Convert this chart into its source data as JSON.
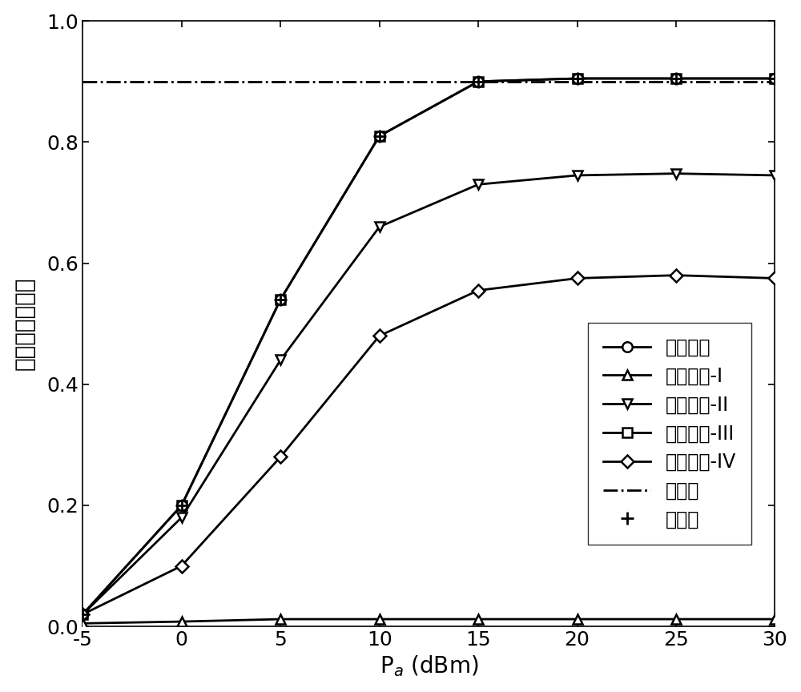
{
  "x": [
    -5,
    0,
    5,
    10,
    15,
    20,
    25,
    30
  ],
  "series_proposed": [
    0.02,
    0.2,
    0.54,
    0.81,
    0.9,
    0.905,
    0.905,
    0.905
  ],
  "series_baseline1": [
    0.005,
    0.008,
    0.012,
    0.012,
    0.012,
    0.012,
    0.012,
    0.012
  ],
  "series_baseline2": [
    0.02,
    0.18,
    0.44,
    0.66,
    0.73,
    0.745,
    0.748,
    0.745
  ],
  "series_baseline3": [
    0.02,
    0.2,
    0.54,
    0.81,
    0.9,
    0.905,
    0.905,
    0.905
  ],
  "series_baseline4": [
    0.02,
    0.1,
    0.28,
    0.48,
    0.555,
    0.575,
    0.58,
    0.575
  ],
  "asymptote": 0.9,
  "sim_x": [
    -5,
    0,
    5,
    10,
    15,
    20,
    25,
    30
  ],
  "sim_y": [
    0.02,
    0.2,
    0.54,
    0.81,
    0.9,
    0.905,
    0.905,
    0.905
  ],
  "xlabel": "P$_{a}$ (dBm)",
  "ylabel": "有效保密吞吐量",
  "xlim": [
    -5,
    30
  ],
  "ylim": [
    0,
    1
  ],
  "xticks": [
    -5,
    0,
    5,
    10,
    15,
    20,
    25,
    30
  ],
  "yticks": [
    0,
    0.2,
    0.4,
    0.6,
    0.8,
    1.0
  ],
  "legend_proposed": "所提方案",
  "legend_baseline1": "基准方案-I",
  "legend_baseline2": "基准方案-II",
  "legend_baseline3": "基准方案-III",
  "legend_baseline4": "基准方案-IV",
  "legend_asymptote": "渐近値",
  "legend_sim": "仿真値",
  "line_color": "#000000",
  "line_width": 2.0,
  "marker_size": 9,
  "fontsize_label": 20,
  "fontsize_tick": 18,
  "fontsize_legend": 17,
  "figsize": [
    10.0,
    8.64
  ],
  "dpi": 100
}
